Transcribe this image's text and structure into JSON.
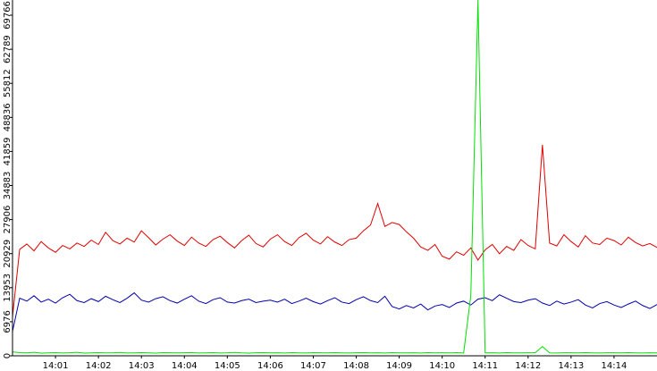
{
  "chart_data": {
    "type": "line",
    "categories": [
      null,
      null,
      null,
      null,
      null,
      null,
      "14:01",
      null,
      null,
      null,
      null,
      null,
      "14:02",
      null,
      null,
      null,
      null,
      null,
      "14:03",
      null,
      null,
      null,
      null,
      null,
      "14:04",
      null,
      null,
      null,
      null,
      null,
      "14:05",
      null,
      null,
      null,
      null,
      null,
      "14:06",
      null,
      null,
      null,
      null,
      null,
      "14:07",
      null,
      null,
      null,
      null,
      null,
      "14:08",
      null,
      null,
      null,
      null,
      null,
      "14:09",
      null,
      null,
      null,
      null,
      null,
      "14:10",
      null,
      null,
      null,
      null,
      null,
      "14:11",
      null,
      null,
      null,
      null,
      null,
      "14:12",
      null,
      null,
      null,
      null,
      null,
      "14:13",
      null,
      null,
      null,
      null,
      null,
      "14:14",
      null,
      null,
      null,
      null,
      null,
      null
    ],
    "series": [
      {
        "color": "#e00000",
        "values": [
          8000,
          21800,
          22900,
          21500,
          23400,
          22100,
          21200,
          22600,
          21900,
          23100,
          22400,
          23700,
          22800,
          25300,
          23600,
          22900,
          24100,
          23300,
          25600,
          24200,
          22700,
          23900,
          24800,
          23500,
          22600,
          24300,
          23100,
          22400,
          23800,
          24500,
          23200,
          22100,
          23600,
          24700,
          23000,
          22300,
          23900,
          24800,
          23400,
          22600,
          24200,
          25100,
          23700,
          22900,
          24400,
          23300,
          22600,
          23800,
          24100,
          25600,
          26800,
          31200,
          26500,
          27300,
          26900,
          25400,
          24100,
          22300,
          21600,
          22800,
          20400,
          19800,
          21300,
          20600,
          22100,
          19600,
          21700,
          22800,
          20900,
          22400,
          21600,
          23800,
          22600,
          21900,
          43200,
          23100,
          22500,
          24800,
          23400,
          22300,
          24600,
          23100,
          22800,
          24100,
          23600,
          22700,
          24300,
          23200,
          22500,
          23000,
          22200
        ]
      },
      {
        "color": "#0000b0",
        "values": [
          5000,
          11800,
          11200,
          12300,
          11000,
          11600,
          10800,
          11900,
          12600,
          11300,
          10900,
          11700,
          11100,
          12200,
          11500,
          10900,
          11800,
          12900,
          11400,
          11000,
          11700,
          12100,
          11300,
          10800,
          11600,
          12300,
          11200,
          10700,
          11500,
          11900,
          11000,
          10800,
          11300,
          11600,
          10900,
          11200,
          11400,
          11000,
          11600,
          10700,
          11200,
          11800,
          11100,
          10600,
          11300,
          11900,
          11000,
          10700,
          11500,
          12100,
          11300,
          10900,
          12200,
          10100,
          9600,
          10300,
          9800,
          10600,
          9400,
          10200,
          10500,
          9900,
          10800,
          11200,
          10400,
          11600,
          11900,
          11300,
          12500,
          11800,
          11100,
          10900,
          11400,
          11700,
          10800,
          10300,
          11200,
          10600,
          11000,
          11500,
          10400,
          9800,
          10700,
          11100,
          10400,
          9900,
          10600,
          11200,
          10300,
          9700,
          10500
        ]
      },
      {
        "color": "#00e000",
        "values": [
          800,
          650,
          600,
          700,
          550,
          600,
          650,
          580,
          620,
          700,
          560,
          600,
          640,
          590,
          610,
          680,
          570,
          600,
          630,
          600,
          560,
          650,
          610,
          590,
          620,
          660,
          580,
          600,
          640,
          570,
          610,
          690,
          600,
          560,
          620,
          650,
          590,
          610,
          580,
          640,
          600,
          570,
          630,
          610,
          590,
          650,
          600,
          580,
          620,
          640,
          590,
          610,
          570,
          630,
          600,
          590,
          620,
          580,
          640,
          600,
          610,
          590,
          630,
          570,
          12400,
          72880,
          600,
          620,
          580,
          640,
          600,
          590,
          610,
          630,
          1900,
          600,
          580,
          620,
          610,
          590,
          640,
          600,
          570,
          620,
          610,
          590,
          630,
          600,
          580,
          610,
          600
        ]
      }
    ],
    "ylim": [
      0,
      72880
    ],
    "yticks": [
      0,
      6976,
      13953,
      20929,
      27906,
      34883,
      41859,
      48836,
      55812,
      62789,
      69766
    ]
  }
}
